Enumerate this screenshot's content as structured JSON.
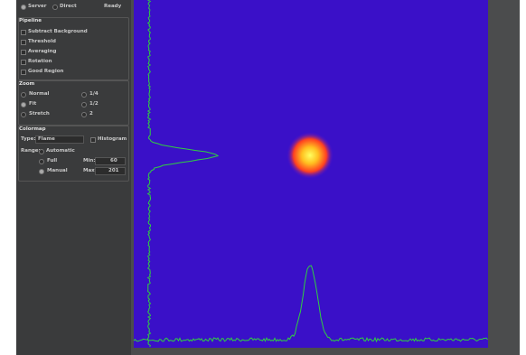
{
  "toolbar": {
    "source_a": "Server",
    "source_b": "Direct",
    "status": "Ready"
  },
  "pipeline": {
    "title": "Pipeline",
    "items": [
      "Subtract Background",
      "Threshold",
      "Averaging",
      "Rotation",
      "Good Region"
    ]
  },
  "zoom": {
    "title": "Zoom",
    "col1": [
      "Normal",
      "Fit",
      "Stretch"
    ],
    "col2": [
      "1/4",
      "1/2",
      "2"
    ]
  },
  "colormap": {
    "title": "Colormap",
    "type_label": "Type:",
    "type_value": "Flame",
    "histogram": "Histogram",
    "range_label": "Range:",
    "automatic": "Automatic",
    "full": "Full",
    "manual": "Manual",
    "min_label": "Min:",
    "min_value": "60",
    "max_label": "Max:",
    "max_value": "201"
  }
}
